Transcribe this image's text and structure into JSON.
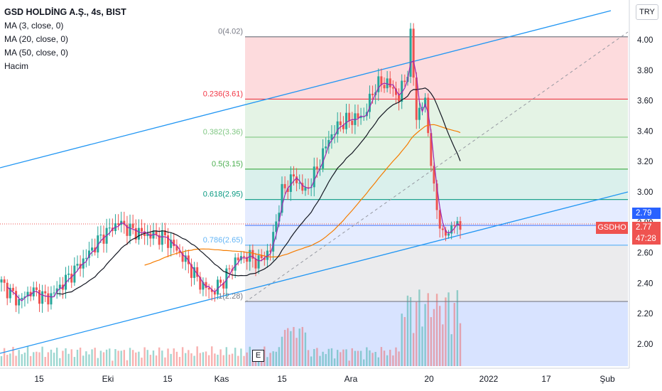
{
  "header": {
    "title": "GSD HOLDİNG A.Ş., 4s, BIST",
    "indicators": [
      "MA (3, close, 0)",
      "MA (20, close, 0)",
      "MA (50, close, 0)",
      "Hacim"
    ],
    "currency": "TRY"
  },
  "price_tags": {
    "upper": "2.79",
    "symbol": "GSDHO",
    "last": "2.77",
    "countdown": "47:28",
    "upper_color": "#2962ff",
    "last_color": "#ef5350"
  },
  "event_marker": "E",
  "colors": {
    "up": "#26a69a",
    "down": "#ef5350",
    "ma3": "#9c27b0",
    "ma20": "#131722",
    "ma50": "#f57c00",
    "channel": "#2196f3"
  },
  "chart_data": {
    "type": "candlestick",
    "symbol": "GSDHO",
    "timeframe": "4s",
    "exchange": "BIST",
    "y_axis": {
      "ticks": [
        "4.00",
        "3.80",
        "3.60",
        "3.40",
        "3.20",
        "3.00",
        "2.80",
        "2.60",
        "2.40",
        "2.20",
        "2.00"
      ],
      "range": [
        1.85,
        4.17
      ]
    },
    "x_axis": {
      "ticks": [
        "15",
        "Eki",
        "15",
        "Kas",
        "15",
        "Ara",
        "20",
        "2022",
        "17",
        "Şub"
      ]
    },
    "fibonacci": {
      "levels": [
        {
          "label": "0(4.02)",
          "value": 4.02,
          "color": "#787b86"
        },
        {
          "label": "0.236(3.61)",
          "value": 3.61,
          "color": "#f23645"
        },
        {
          "label": "0.382(3.36)",
          "value": 3.36,
          "color": "#81c784"
        },
        {
          "label": "0.5(3.15)",
          "value": 3.15,
          "color": "#4caf50"
        },
        {
          "label": "0.618(2.95)",
          "value": 2.95,
          "color": "#089981"
        },
        {
          "label": "0.786(2.65)",
          "value": 2.65,
          "color": "#64b5f6"
        },
        {
          "label": "1(2.28)",
          "value": 2.28,
          "color": "#787b86"
        }
      ]
    },
    "price_keypoints": [
      [
        0,
        2.4
      ],
      [
        6,
        2.28
      ],
      [
        10,
        2.35
      ],
      [
        16,
        2.3
      ],
      [
        22,
        2.42
      ],
      [
        28,
        2.55
      ],
      [
        34,
        2.7
      ],
      [
        40,
        2.8
      ],
      [
        44,
        2.75
      ],
      [
        50,
        2.72
      ],
      [
        56,
        2.7
      ],
      [
        60,
        2.62
      ],
      [
        64,
        2.52
      ],
      [
        68,
        2.4
      ],
      [
        72,
        2.34
      ],
      [
        76,
        2.42
      ],
      [
        80,
        2.55
      ],
      [
        84,
        2.58
      ],
      [
        88,
        2.54
      ],
      [
        92,
        2.62
      ],
      [
        96,
        3.0
      ],
      [
        100,
        3.1
      ],
      [
        104,
        3.0
      ],
      [
        108,
        3.15
      ],
      [
        112,
        3.35
      ],
      [
        116,
        3.45
      ],
      [
        120,
        3.48
      ],
      [
        124,
        3.5
      ],
      [
        128,
        3.7
      ],
      [
        132,
        3.72
      ],
      [
        136,
        3.62
      ],
      [
        139,
        3.8
      ],
      [
        140,
        4.02
      ],
      [
        142,
        3.5
      ],
      [
        145,
        3.6
      ],
      [
        148,
        3.0
      ],
      [
        151,
        2.7
      ],
      [
        155,
        2.79
      ],
      [
        157,
        2.77
      ]
    ],
    "volume_note": "Hacim histogram along bottom of chart"
  }
}
